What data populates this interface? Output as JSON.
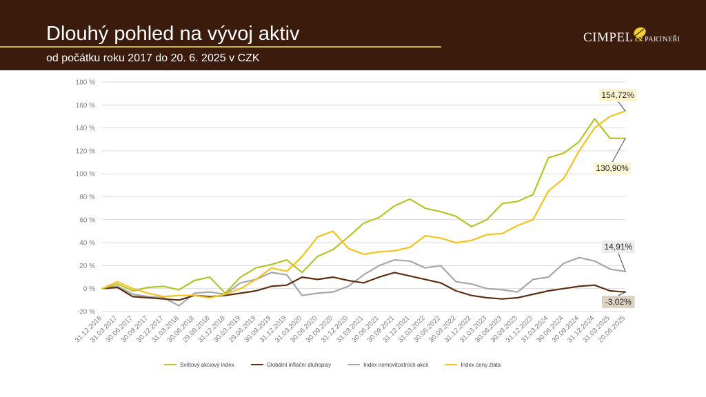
{
  "header": {
    "title": "Dlouhý pohled na vývoj aktiv",
    "subtitle": "od počátku roku 2017 do 20. 6. 2025 v CZK",
    "logo_main": "CIMPEL",
    "logo_amp": "&",
    "logo_sub": "PARTNEŘI"
  },
  "chart_data": {
    "type": "line",
    "y_ticks": [
      "180 %",
      "160 %",
      "140 %",
      "120 %",
      "100 %",
      "80 %",
      "60 %",
      "40 %",
      "20 %",
      "0 %",
      "-20 %"
    ],
    "ylim": [
      -20,
      180
    ],
    "x_ticks": [
      "31.12.2016",
      "31.03.2017",
      "30.06.2017",
      "30.09.2017",
      "30.12.2017",
      "31.03.2018",
      "30.06.2018",
      "29.09.2018",
      "31.12.2018",
      "30.03.2019",
      "29.06.2019",
      "30.09.2019",
      "31.12.2019",
      "31.03.2020",
      "30.06.2020",
      "30.09.2020",
      "31.12.2020",
      "31.03.2021",
      "30.06.2021",
      "30.09.2021",
      "31.12.2021",
      "31.03.2022",
      "30.06.2022",
      "30.09.2022",
      "31.12.2022",
      "31.03.2023",
      "30.06.2023",
      "30.09.2023",
      "31.12.2023",
      "31.03.2024",
      "30.06.2024",
      "30.09.2024",
      "31.12.2024",
      "31.03.2025",
      "20.06.2025"
    ],
    "grid": true,
    "legend_position": "bottom",
    "series": [
      {
        "name": "Světový akciový index",
        "color": "#b5c424",
        "values": [
          0,
          4,
          -2,
          1,
          2,
          -1,
          7,
          10,
          -4,
          10,
          18,
          21,
          25,
          14,
          28,
          34,
          45,
          57,
          62,
          72,
          78,
          70,
          67,
          63,
          54,
          60,
          74,
          76,
          82,
          114,
          118,
          128,
          148,
          131,
          130.9
        ],
        "end_label": "130,90%"
      },
      {
        "name": "Globální inflační dluhopisy",
        "color": "#5b2f0f",
        "values": [
          0,
          1,
          -7,
          -8,
          -9,
          -10,
          -6,
          -7,
          -6,
          -4,
          -2,
          2,
          3,
          10,
          8,
          10,
          7,
          5,
          10,
          14,
          11,
          8,
          5,
          -2,
          -6,
          -8,
          -9,
          -8,
          -5,
          -2,
          0,
          2,
          3,
          -2,
          -3.02
        ],
        "end_label": "-3,02%"
      },
      {
        "name": "Index nemovitostních akcií",
        "color": "#a6a6a6",
        "values": [
          0,
          2,
          -5,
          -7,
          -8,
          -15,
          -4,
          -3,
          -5,
          5,
          8,
          14,
          12,
          -6,
          -4,
          -3,
          2,
          12,
          20,
          25,
          24,
          18,
          20,
          6,
          4,
          0,
          -1,
          -3,
          8,
          10,
          22,
          27,
          24,
          17,
          14.91
        ],
        "end_label": "14,91%"
      },
      {
        "name": "Index ceny zlata",
        "color": "#f5c21b",
        "values": [
          0,
          6,
          0,
          -4,
          -7,
          -6,
          -6,
          -8,
          -5,
          0,
          8,
          18,
          15,
          28,
          45,
          50,
          35,
          30,
          32,
          33,
          36,
          46,
          44,
          40,
          42,
          47,
          48,
          55,
          60,
          85,
          96,
          120,
          140,
          150,
          154.72
        ],
        "end_label": "154,72%"
      }
    ]
  }
}
